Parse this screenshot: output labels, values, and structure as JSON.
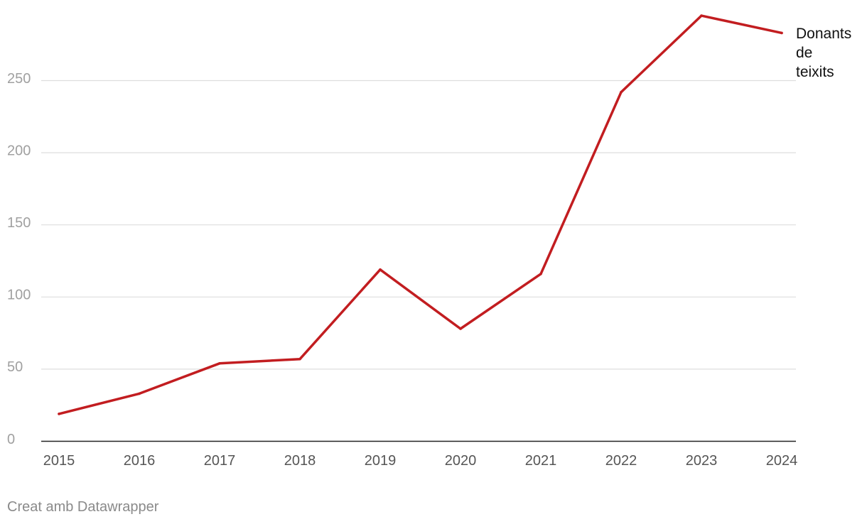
{
  "chart_data": {
    "type": "line",
    "x": [
      "2015",
      "2016",
      "2017",
      "2018",
      "2019",
      "2020",
      "2021",
      "2022",
      "2023",
      "2024"
    ],
    "series": [
      {
        "name": "Donants de teixits",
        "name_lines": [
          "Donants",
          "de",
          "teixits"
        ],
        "values": [
          19,
          33,
          54,
          57,
          119,
          78,
          116,
          242,
          295,
          283
        ],
        "color": "#c21d20"
      }
    ],
    "y_ticks": [
      0,
      50,
      100,
      150,
      200,
      250
    ],
    "ylim": [
      0,
      300
    ],
    "grid": true,
    "gridline_color": "#dedede",
    "baseline_color": "#222222",
    "tick_label_color": "#a0a0a0",
    "x_tick_label_color": "#555555",
    "title": "",
    "xlabel": "",
    "ylabel": ""
  },
  "credit": "Creat amb Datawrapper"
}
